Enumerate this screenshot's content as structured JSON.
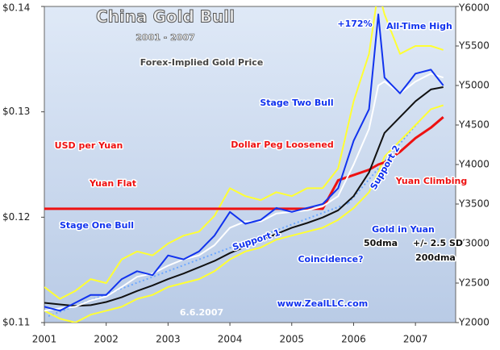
{
  "chart_data": {
    "type": "line",
    "title": "China Gold Bull",
    "subtitle": "2001 - 2007",
    "x": [
      2001.0,
      2001.25,
      2001.5,
      2001.75,
      2002.0,
      2002.25,
      2002.5,
      2002.75,
      2003.0,
      2003.25,
      2003.5,
      2003.75,
      2004.0,
      2004.25,
      2004.5,
      2004.75,
      2005.0,
      2005.25,
      2005.5,
      2005.75,
      2006.0,
      2006.25,
      2006.4,
      2006.5,
      2006.75,
      2007.0,
      2007.25,
      2007.45
    ],
    "xlim": [
      2001,
      2007.65
    ],
    "xticks": [
      2001,
      2002,
      2003,
      2004,
      2005,
      2006,
      2007
    ],
    "ylim": [
      0.11,
      0.14
    ],
    "yticks": [
      {
        "value": 0.11,
        "label": "$0.11"
      },
      {
        "value": 0.12,
        "label": "$0.12"
      },
      {
        "value": 0.13,
        "label": "$0.13"
      },
      {
        "value": 0.14,
        "label": "$0.14"
      }
    ],
    "y2lim": [
      2000,
      6000
    ],
    "y2ticks": [
      {
        "value": 2000,
        "label": "Y2000"
      },
      {
        "value": 2500,
        "label": "Y2500"
      },
      {
        "value": 3000,
        "label": "Y3000"
      },
      {
        "value": 3500,
        "label": "Y3500"
      },
      {
        "value": 4000,
        "label": "Y4000"
      },
      {
        "value": 4500,
        "label": "Y4500"
      },
      {
        "value": 5000,
        "label": "Y5000"
      },
      {
        "value": 5500,
        "label": "Y5500"
      },
      {
        "value": 6000,
        "label": "Y6000"
      }
    ],
    "series": [
      {
        "color": "#ffff33",
        "axis": "y2",
        "values": [
          2450,
          2300,
          2400,
          2550,
          2500,
          2800,
          2900,
          2850,
          3000,
          3100,
          3150,
          3350,
          3700,
          3600,
          3550,
          3650,
          3600,
          3700,
          3700,
          3950,
          4800,
          5400,
          6200,
          5900,
          5400,
          5500,
          5500,
          5450
        ]
      },
      {
        "name": "+/- 2.5 SD",
        "color": "#ffff33",
        "axis": "y2",
        "values": [
          2150,
          2050,
          2000,
          2100,
          2150,
          2200,
          2300,
          2350,
          2450,
          2500,
          2550,
          2650,
          2800,
          2900,
          2950,
          3050,
          3100,
          3150,
          3200,
          3300,
          3450,
          3650,
          3900,
          4100,
          4300,
          4500,
          4700,
          4750
        ]
      },
      {
        "name": "USD per Yuan",
        "color": "#ee1111",
        "axis": "y",
        "values": [
          0.1208,
          0.1208,
          0.1208,
          0.1208,
          0.1208,
          0.1208,
          0.1208,
          0.1208,
          0.1208,
          0.1208,
          0.1208,
          0.1208,
          0.1208,
          0.1208,
          0.1208,
          0.1208,
          0.1208,
          0.1208,
          0.1208,
          0.1235,
          0.124,
          0.1245,
          0.125,
          0.1252,
          0.1262,
          0.1275,
          0.1285,
          0.1295
        ]
      },
      {
        "name": "200dma",
        "color": "#111111",
        "axis": "y2",
        "values": [
          2250,
          2230,
          2210,
          2220,
          2260,
          2320,
          2400,
          2470,
          2550,
          2620,
          2700,
          2780,
          2880,
          2960,
          3040,
          3120,
          3200,
          3260,
          3330,
          3420,
          3600,
          3900,
          4200,
          4400,
          4600,
          4800,
          4950,
          4980
        ]
      },
      {
        "name": "50dma",
        "color": "#ffffff",
        "axis": "y2",
        "values": [
          2150,
          2180,
          2200,
          2280,
          2330,
          2450,
          2580,
          2620,
          2720,
          2800,
          2850,
          2980,
          3200,
          3280,
          3280,
          3380,
          3400,
          3420,
          3470,
          3600,
          4000,
          4450,
          5000,
          5050,
          4900,
          5050,
          5150,
          5100
        ]
      },
      {
        "name": "Gold in Yuan",
        "color": "#1133ee",
        "axis": "y2",
        "values": [
          2200,
          2150,
          2250,
          2350,
          2350,
          2550,
          2650,
          2600,
          2850,
          2800,
          2900,
          3100,
          3400,
          3250,
          3300,
          3450,
          3400,
          3450,
          3500,
          3700,
          4300,
          4700,
          5900,
          5100,
          4900,
          5150,
          5200,
          5000
        ]
      }
    ],
    "annotations": [
      "Forex-Implied Gold Price",
      "+172%",
      "All-Time High",
      "Stage Two Bull",
      "Dollar Peg Loosened",
      "Yuan Flat",
      "Support 2",
      "Yuan Climbing",
      "Stage One Bull",
      "Support 1",
      "Coincidence?",
      "6.6.2007",
      "www.ZealLLC.com"
    ]
  }
}
